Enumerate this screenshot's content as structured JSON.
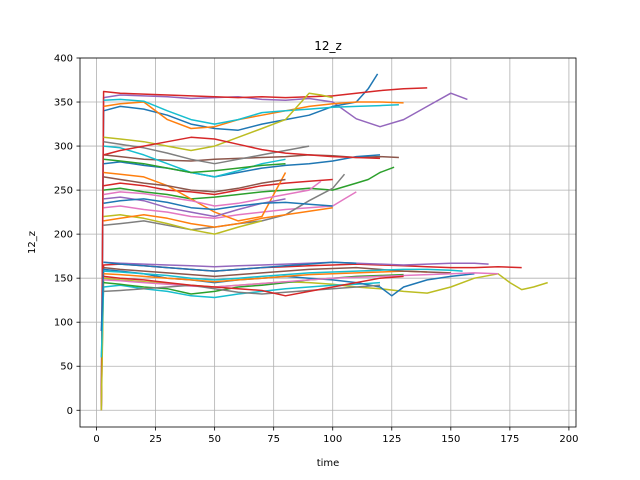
{
  "chart_data": {
    "type": "line",
    "title": "12_z",
    "xlabel": "time",
    "ylabel": "12_z",
    "xlim": [
      -7,
      203
    ],
    "ylim": [
      -19,
      400
    ],
    "xticks": [
      0,
      25,
      50,
      75,
      100,
      125,
      150,
      175,
      200
    ],
    "yticks": [
      0,
      50,
      100,
      150,
      200,
      250,
      300,
      350,
      400
    ],
    "grid": true,
    "colors": [
      "#1f77b4",
      "#ff7f0e",
      "#2ca02c",
      "#d62728",
      "#9467bd",
      "#8c564b",
      "#e377c2",
      "#7f7f7f",
      "#bcbd22",
      "#17becf"
    ],
    "series": [
      {
        "color": "#9467bd",
        "x": [
          2,
          3,
          10,
          20,
          30,
          40,
          50,
          60,
          70,
          80,
          90,
          100,
          110,
          120,
          130,
          140,
          150,
          157
        ],
        "y": [
          0,
          355,
          358,
          357,
          356,
          354,
          355,
          356,
          353,
          352,
          354,
          350,
          331,
          322,
          330,
          345,
          360,
          353
        ]
      },
      {
        "color": "#1f77b4",
        "x": [
          2,
          3,
          10,
          20,
          30,
          40,
          50,
          60,
          70,
          80,
          90,
          100,
          110,
          115,
          119
        ],
        "y": [
          0,
          340,
          345,
          342,
          335,
          325,
          320,
          318,
          325,
          330,
          335,
          345,
          350,
          365,
          382
        ]
      },
      {
        "color": "#d62728",
        "x": [
          2,
          3,
          10,
          20,
          30,
          40,
          50,
          60,
          70,
          80,
          90,
          100,
          110,
          120,
          130,
          140
        ],
        "y": [
          0,
          362,
          360,
          359,
          358,
          357,
          356,
          355,
          356,
          355,
          356,
          357,
          360,
          363,
          365,
          366
        ]
      },
      {
        "color": "#ff7f0e",
        "x": [
          3,
          10,
          20,
          30,
          40,
          50,
          60,
          70,
          80,
          90,
          100,
          110,
          120,
          130
        ],
        "y": [
          345,
          348,
          350,
          330,
          320,
          322,
          330,
          335,
          340,
          345,
          348,
          350,
          350,
          349
        ]
      },
      {
        "color": "#17becf",
        "x": [
          3,
          10,
          20,
          30,
          40,
          50,
          60,
          70,
          80,
          90,
          100,
          110,
          120,
          128
        ],
        "y": [
          352,
          353,
          351,
          340,
          330,
          325,
          330,
          338,
          340,
          342,
          344,
          345,
          346,
          347
        ]
      },
      {
        "color": "#bcbd22",
        "x": [
          3,
          10,
          20,
          30,
          40,
          50,
          60,
          70,
          80,
          85,
          90,
          95,
          100
        ],
        "y": [
          310,
          308,
          305,
          300,
          295,
          300,
          310,
          320,
          330,
          345,
          360,
          358,
          355
        ]
      },
      {
        "color": "#8c564b",
        "x": [
          3,
          10,
          20,
          30,
          40,
          50,
          60,
          70,
          80,
          90,
          100,
          110,
          120,
          128
        ],
        "y": [
          290,
          288,
          285,
          284,
          283,
          285,
          286,
          287,
          288,
          290,
          289,
          287,
          288,
          287
        ]
      },
      {
        "color": "#1f77b4",
        "x": [
          3,
          10,
          20,
          30,
          40,
          50,
          60,
          70,
          80,
          90,
          100,
          110,
          120
        ],
        "y": [
          280,
          282,
          278,
          275,
          270,
          265,
          270,
          275,
          278,
          280,
          283,
          288,
          290
        ]
      },
      {
        "color": "#2ca02c",
        "x": [
          3,
          10,
          20,
          30,
          40,
          50,
          60,
          70,
          80,
          90,
          100,
          110,
          115,
          120,
          126
        ],
        "y": [
          250,
          252,
          248,
          245,
          240,
          242,
          245,
          248,
          250,
          252,
          250,
          258,
          262,
          270,
          276
        ]
      },
      {
        "color": "#e377c2",
        "x": [
          3,
          10,
          20,
          30,
          40,
          50,
          60,
          70,
          80,
          90,
          100,
          105,
          110
        ],
        "y": [
          230,
          232,
          228,
          225,
          220,
          218,
          222,
          225,
          228,
          230,
          232,
          240,
          248
        ]
      },
      {
        "color": "#7f7f7f",
        "x": [
          3,
          10,
          20,
          30,
          40,
          50,
          60,
          70,
          80,
          90,
          100,
          105
        ],
        "y": [
          210,
          212,
          215,
          210,
          205,
          208,
          212,
          215,
          222,
          238,
          252,
          268
        ]
      },
      {
        "color": "#d62728",
        "x": [
          3,
          10,
          20,
          30,
          40,
          50,
          60,
          70,
          80,
          90,
          100
        ],
        "y": [
          255,
          258,
          255,
          250,
          248,
          245,
          250,
          255,
          258,
          260,
          262
        ]
      },
      {
        "color": "#ff7f0e",
        "x": [
          3,
          10,
          20,
          30,
          40,
          50,
          60,
          70,
          75,
          80
        ],
        "y": [
          270,
          268,
          265,
          255,
          240,
          225,
          215,
          220,
          245,
          270
        ]
      },
      {
        "color": "#9467bd",
        "x": [
          3,
          10,
          20,
          30,
          40,
          50,
          60,
          70,
          80
        ],
        "y": [
          240,
          242,
          238,
          230,
          225,
          220,
          228,
          235,
          240
        ]
      },
      {
        "color": "#17becf",
        "x": [
          3,
          10,
          20,
          30,
          40,
          50,
          60,
          70,
          80
        ],
        "y": [
          300,
          298,
          290,
          280,
          270,
          265,
          272,
          280,
          285
        ]
      },
      {
        "color": "#bcbd22",
        "x": [
          3,
          10,
          20,
          30,
          40,
          50,
          60,
          70
        ],
        "y": [
          220,
          222,
          218,
          212,
          205,
          200,
          208,
          215
        ]
      },
      {
        "color": "#1f77b4",
        "x": [
          3,
          10,
          20,
          30,
          40,
          50,
          60,
          70,
          80,
          90,
          100
        ],
        "y": [
          235,
          238,
          240,
          236,
          230,
          228,
          232,
          235,
          236,
          234,
          232
        ]
      },
      {
        "color": "#8c564b",
        "x": [
          3,
          10,
          20,
          30,
          40,
          50,
          60,
          70,
          80
        ],
        "y": [
          265,
          262,
          258,
          255,
          250,
          248,
          252,
          258,
          262
        ]
      },
      {
        "color": "#2ca02c",
        "x": [
          3,
          10,
          20,
          30,
          40,
          50,
          60,
          70,
          80
        ],
        "y": [
          285,
          283,
          280,
          275,
          270,
          272,
          275,
          278,
          280
        ]
      },
      {
        "color": "#e377c2",
        "x": [
          3,
          10,
          20,
          30,
          40,
          50,
          60,
          70,
          80,
          90,
          95
        ],
        "y": [
          245,
          248,
          246,
          242,
          238,
          232,
          235,
          240,
          245,
          250,
          260
        ]
      },
      {
        "color": "#7f7f7f",
        "x": [
          3,
          10,
          20,
          30,
          40,
          50,
          60,
          70,
          80,
          90
        ],
        "y": [
          305,
          302,
          298,
          292,
          285,
          280,
          285,
          290,
          295,
          300
        ]
      },
      {
        "color": "#ff7f0e",
        "x": [
          3,
          10,
          20,
          30,
          40,
          50,
          60,
          70,
          80,
          90,
          100
        ],
        "y": [
          215,
          218,
          222,
          218,
          212,
          208,
          212,
          218,
          222,
          226,
          230
        ]
      },
      {
        "color": "#d62728",
        "x": [
          3,
          10,
          20,
          30,
          40,
          50,
          60,
          70,
          80,
          90,
          100,
          110,
          120
        ],
        "y": [
          290,
          295,
          300,
          305,
          310,
          308,
          302,
          296,
          292,
          290,
          288,
          287,
          286
        ]
      },
      {
        "color": "#d62728",
        "x": [
          2,
          3,
          10,
          20,
          30,
          40,
          50,
          60,
          70,
          80,
          90,
          100,
          110,
          120,
          130,
          140,
          150,
          160,
          170,
          180
        ],
        "y": [
          5,
          165,
          166,
          164,
          162,
          160,
          158,
          160,
          162,
          163,
          164,
          165,
          166,
          165,
          164,
          163,
          162,
          162,
          163,
          162
        ]
      },
      {
        "color": "#bcbd22",
        "x": [
          2,
          3,
          10,
          20,
          30,
          40,
          50,
          60,
          70,
          80,
          90,
          100,
          110,
          120,
          130,
          140,
          150,
          160,
          170,
          175,
          180,
          185,
          191
        ],
        "y": [
          0,
          150,
          148,
          146,
          144,
          142,
          140,
          142,
          144,
          146,
          145,
          143,
          140,
          138,
          135,
          133,
          140,
          150,
          155,
          145,
          137,
          140,
          145
        ]
      },
      {
        "color": "#17becf",
        "x": [
          2,
          3,
          10,
          20,
          30,
          40,
          50,
          60,
          70,
          80,
          90,
          100,
          110,
          120
        ],
        "y": [
          60,
          140,
          142,
          138,
          135,
          130,
          128,
          132,
          135,
          138,
          140,
          142,
          143,
          145
        ]
      },
      {
        "color": "#1f77b4",
        "x": [
          2,
          3,
          10,
          20,
          30,
          40,
          50,
          60,
          70,
          80,
          90,
          100,
          110,
          120,
          125,
          130,
          140,
          150,
          160
        ],
        "y": [
          90,
          160,
          158,
          155,
          150,
          148,
          145,
          148,
          150,
          152,
          150,
          148,
          145,
          140,
          130,
          140,
          148,
          152,
          155
        ]
      },
      {
        "color": "#2ca02c",
        "x": [
          3,
          10,
          20,
          30,
          40,
          50,
          60,
          70,
          80,
          90,
          100,
          110,
          120,
          130
        ],
        "y": [
          145,
          143,
          140,
          138,
          132,
          135,
          140,
          142,
          145,
          148,
          150,
          152,
          153,
          154
        ]
      },
      {
        "color": "#9467bd",
        "x": [
          3,
          10,
          20,
          30,
          40,
          50,
          60,
          70,
          80,
          90,
          100,
          110,
          120,
          130,
          140,
          150,
          160,
          166
        ],
        "y": [
          168,
          167,
          166,
          165,
          164,
          163,
          164,
          165,
          166,
          167,
          168,
          167,
          166,
          165,
          166,
          167,
          167,
          166
        ]
      },
      {
        "color": "#ff7f0e",
        "x": [
          3,
          10,
          20,
          30,
          40,
          50,
          60,
          70,
          80,
          90,
          100,
          110,
          120,
          130,
          140
        ],
        "y": [
          155,
          154,
          152,
          150,
          148,
          146,
          148,
          150,
          152,
          154,
          155,
          156,
          157,
          158,
          157
        ]
      },
      {
        "color": "#8c564b",
        "x": [
          3,
          10,
          20,
          30,
          40,
          50,
          60,
          70,
          80,
          90,
          100,
          110,
          120,
          130,
          140,
          150
        ],
        "y": [
          162,
          160,
          158,
          156,
          154,
          152,
          154,
          156,
          158,
          160,
          161,
          162,
          160,
          158,
          157,
          156
        ]
      },
      {
        "color": "#e377c2",
        "x": [
          3,
          10,
          20,
          30,
          40,
          50,
          60,
          70,
          80,
          90,
          100,
          110,
          120,
          130,
          140,
          150,
          160,
          170
        ],
        "y": [
          148,
          147,
          145,
          143,
          141,
          140,
          142,
          144,
          146,
          148,
          150,
          151,
          152,
          153,
          154,
          155,
          156,
          155
        ]
      },
      {
        "color": "#7f7f7f",
        "x": [
          3,
          10,
          20,
          30,
          40,
          50,
          60,
          70,
          80,
          90,
          100,
          110,
          120
        ],
        "y": [
          135,
          136,
          138,
          140,
          142,
          138,
          134,
          132,
          134,
          136,
          138,
          140,
          142
        ]
      },
      {
        "color": "#17becf",
        "x": [
          3,
          10,
          20,
          30,
          40,
          50,
          60,
          70,
          80,
          90,
          100,
          110,
          120,
          130,
          140,
          150,
          155
        ],
        "y": [
          158,
          157,
          155,
          153,
          150,
          148,
          150,
          152,
          154,
          156,
          157,
          158,
          159,
          160,
          160,
          159,
          158
        ]
      },
      {
        "color": "#d62728",
        "x": [
          3,
          10,
          20,
          30,
          40,
          50,
          60,
          70,
          80,
          90,
          100,
          110,
          120,
          130
        ],
        "y": [
          152,
          150,
          148,
          145,
          142,
          140,
          138,
          136,
          130,
          135,
          140,
          145,
          150,
          152
        ]
      },
      {
        "color": "#1f77b4",
        "x": [
          3,
          10,
          20,
          30,
          40,
          50,
          60,
          70,
          80,
          90,
          100,
          110
        ],
        "y": [
          168,
          166,
          164,
          162,
          160,
          158,
          160,
          162,
          164,
          166,
          168,
          167
        ]
      }
    ]
  }
}
